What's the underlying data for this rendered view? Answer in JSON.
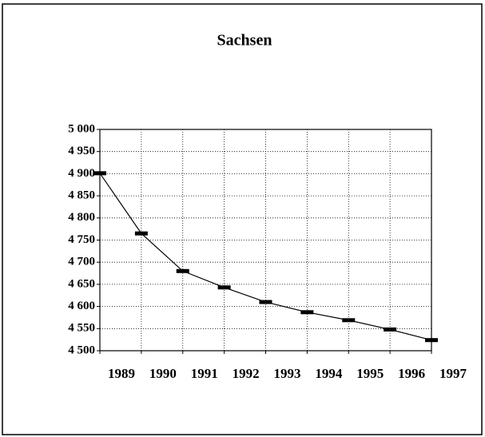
{
  "chart_data": {
    "type": "line",
    "title": "Sachsen",
    "categories": [
      "1989",
      "1990",
      "1991",
      "1992",
      "1993",
      "1994",
      "1995",
      "1996",
      "1997"
    ],
    "series": [
      {
        "name": "Sachsen",
        "color": "#000000",
        "values": [
          4901,
          4765,
          4680,
          4643,
          4610,
          4587,
          4569,
          4548,
          4524
        ]
      }
    ],
    "ylim": [
      4500,
      5000
    ],
    "yticks": [
      {
        "value": 4500,
        "label": "4 500"
      },
      {
        "value": 4550,
        "label": "4 550"
      },
      {
        "value": 4600,
        "label": "4 600"
      },
      {
        "value": 4650,
        "label": "4 650"
      },
      {
        "value": 4700,
        "label": "4 700"
      },
      {
        "value": 4750,
        "label": "4 750"
      },
      {
        "value": 4800,
        "label": "4 800"
      },
      {
        "value": 4850,
        "label": "4 850"
      },
      {
        "value": 4900,
        "label": "4 900"
      },
      {
        "value": 4950,
        "label": "4 950"
      },
      {
        "value": 5000,
        "label": "5 000"
      }
    ],
    "grid": true
  }
}
